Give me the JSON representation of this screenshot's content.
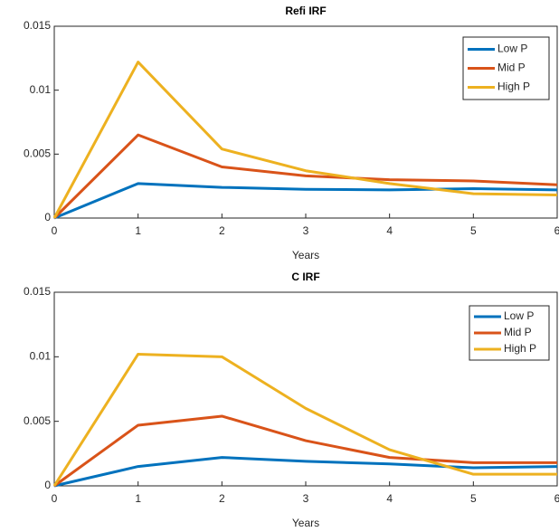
{
  "chart_data": [
    {
      "type": "line",
      "title": "Refi IRF",
      "x_label": "Years",
      "x": [
        0,
        1,
        2,
        3,
        4,
        5,
        6
      ],
      "series": [
        {
          "name": "Low P",
          "color": "#0072BD",
          "values": [
            0,
            0.0027,
            0.0024,
            0.00225,
            0.0022,
            0.0023,
            0.0022
          ]
        },
        {
          "name": "Mid P",
          "color": "#D95319",
          "values": [
            0,
            0.0065,
            0.004,
            0.0033,
            0.003,
            0.0029,
            0.0026
          ]
        },
        {
          "name": "High P",
          "color": "#EDB120",
          "values": [
            0,
            0.0122,
            0.0054,
            0.0037,
            0.0027,
            0.0019,
            0.0018
          ]
        }
      ],
      "xlim": [
        0,
        6
      ],
      "xticks": [
        0,
        1,
        2,
        3,
        4,
        5,
        6
      ],
      "ylim": [
        0,
        0.015
      ],
      "yticks": [
        0,
        0.005,
        0.01,
        0.015
      ],
      "grid": false,
      "legend": "northeast"
    },
    {
      "type": "line",
      "title": "C IRF",
      "x_label": "Years",
      "x": [
        0,
        1,
        2,
        3,
        4,
        5,
        6
      ],
      "series": [
        {
          "name": "Low P",
          "color": "#0072BD",
          "values": [
            0,
            0.0015,
            0.0022,
            0.0019,
            0.0017,
            0.0014,
            0.0015
          ]
        },
        {
          "name": "Mid P",
          "color": "#D95319",
          "values": [
            0,
            0.0047,
            0.0054,
            0.0035,
            0.0022,
            0.0018,
            0.0018
          ]
        },
        {
          "name": "High P",
          "color": "#EDB120",
          "values": [
            0,
            0.0102,
            0.01,
            0.006,
            0.0028,
            0.0009,
            0.0009
          ]
        }
      ],
      "xlim": [
        0,
        6
      ],
      "xticks": [
        0,
        1,
        2,
        3,
        4,
        5,
        6
      ],
      "ylim": [
        0,
        0.015
      ],
      "yticks": [
        0,
        0.005,
        0.01,
        0.015
      ],
      "grid": false,
      "legend": "northeast"
    }
  ]
}
